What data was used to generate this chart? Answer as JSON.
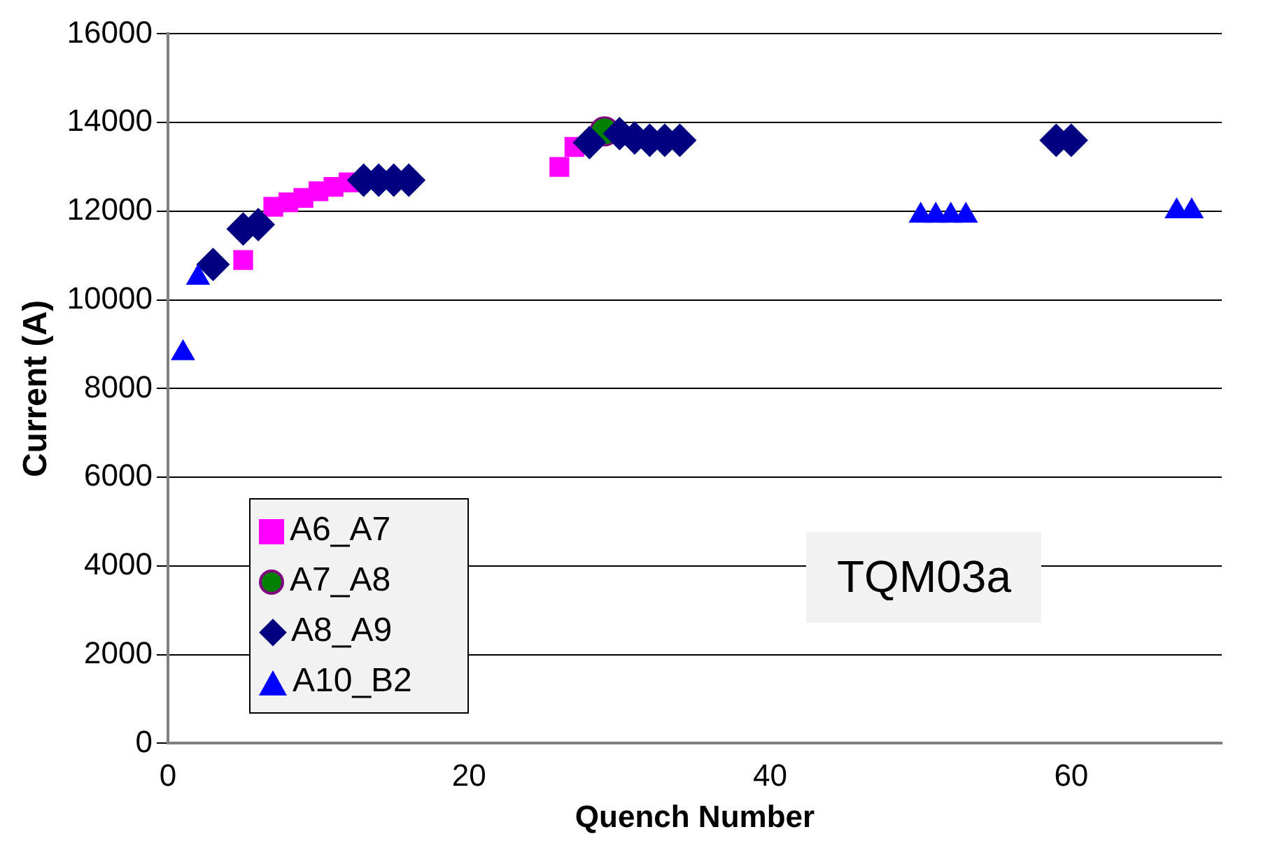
{
  "chart_data": {
    "type": "scatter",
    "xlabel": "Quench Number",
    "ylabel": "Current (A)",
    "xlim": [
      0,
      70
    ],
    "xticks": [
      0,
      20,
      40,
      60
    ],
    "ylim": [
      0,
      16000
    ],
    "yticks": [
      0,
      2000,
      4000,
      6000,
      8000,
      10000,
      12000,
      14000,
      16000
    ],
    "grid": "y",
    "legend": "bottom left",
    "annotations": [
      "TQM03a"
    ],
    "series": [
      {
        "name": "A6_A7",
        "color": "#ff00ff",
        "marker": "square",
        "x": [
          5,
          7,
          8,
          9,
          10,
          11,
          12,
          26,
          27
        ],
        "values": [
          10900,
          12100,
          12200,
          12300,
          12450,
          12550,
          12650,
          13000,
          13450
        ]
      },
      {
        "name": "A7_A8",
        "color": "#008000",
        "marker": "circle",
        "x": [
          29
        ],
        "values": [
          13800
        ]
      },
      {
        "name": "A8_A9",
        "color": "#000080",
        "marker": "diamond",
        "x": [
          3,
          5,
          6,
          13,
          14,
          15,
          16,
          28,
          30,
          31,
          32,
          33,
          34,
          59,
          60
        ],
        "values": [
          10800,
          11600,
          11700,
          12700,
          12700,
          12700,
          12700,
          13550,
          13750,
          13650,
          13600,
          13600,
          13600,
          13600,
          13600
        ]
      },
      {
        "name": "A10_B2",
        "color": "#0000ff",
        "marker": "triangle",
        "x": [
          1,
          2,
          50,
          51,
          52,
          53,
          67,
          68
        ],
        "values": [
          8800,
          10500,
          11900,
          11900,
          11900,
          11900,
          12000,
          12000
        ]
      }
    ]
  }
}
